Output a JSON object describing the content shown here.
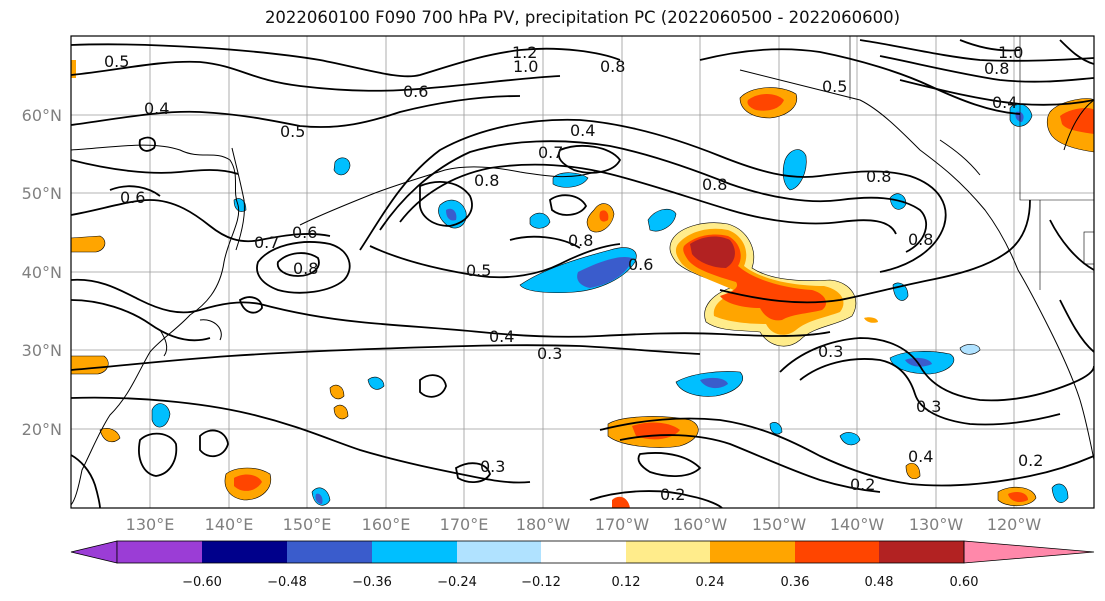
{
  "title": "2022060100 F090 700 hPa PV, precipitation PC (2022060500 - 2022060600)",
  "lat_labels": [
    "60°N",
    "50°N",
    "40°N",
    "30°N",
    "20°N"
  ],
  "lon_labels": [
    "130°E",
    "140°E",
    "150°E",
    "160°E",
    "170°E",
    "180°W",
    "170°W",
    "160°W",
    "150°W",
    "140°W",
    "130°W",
    "120°W"
  ],
  "contour_labels": [
    "0.5",
    "0.4",
    "0.5",
    "0.6",
    "1.2",
    "1.0",
    "0.8",
    "0.4",
    "0.7",
    "0.8",
    "0.8",
    "0.8",
    "0.5",
    "1.0",
    "0.8",
    "0.4",
    "0.6",
    "0.7",
    "0.6",
    "0.8",
    "0.8",
    "0.5",
    "0.6",
    "0.8",
    "0.4",
    "0.3",
    "0.3",
    "0.3",
    "0.4",
    "0.2",
    "0.2",
    "0.3",
    "0.2"
  ],
  "colorbar": {
    "colors": [
      "#9b3dd6",
      "#00008b",
      "#3a5ccc",
      "#00bfff",
      "#b0e2ff",
      "#ffffff",
      "#ffec8b",
      "#ffa500",
      "#ff4500",
      "#b22222",
      "#ff88aa"
    ],
    "ticks": [
      "−0.60",
      "−0.48",
      "−0.36",
      "−0.24",
      "−0.12",
      "0.12",
      "0.24",
      "0.36",
      "0.48",
      "0.60"
    ]
  }
}
